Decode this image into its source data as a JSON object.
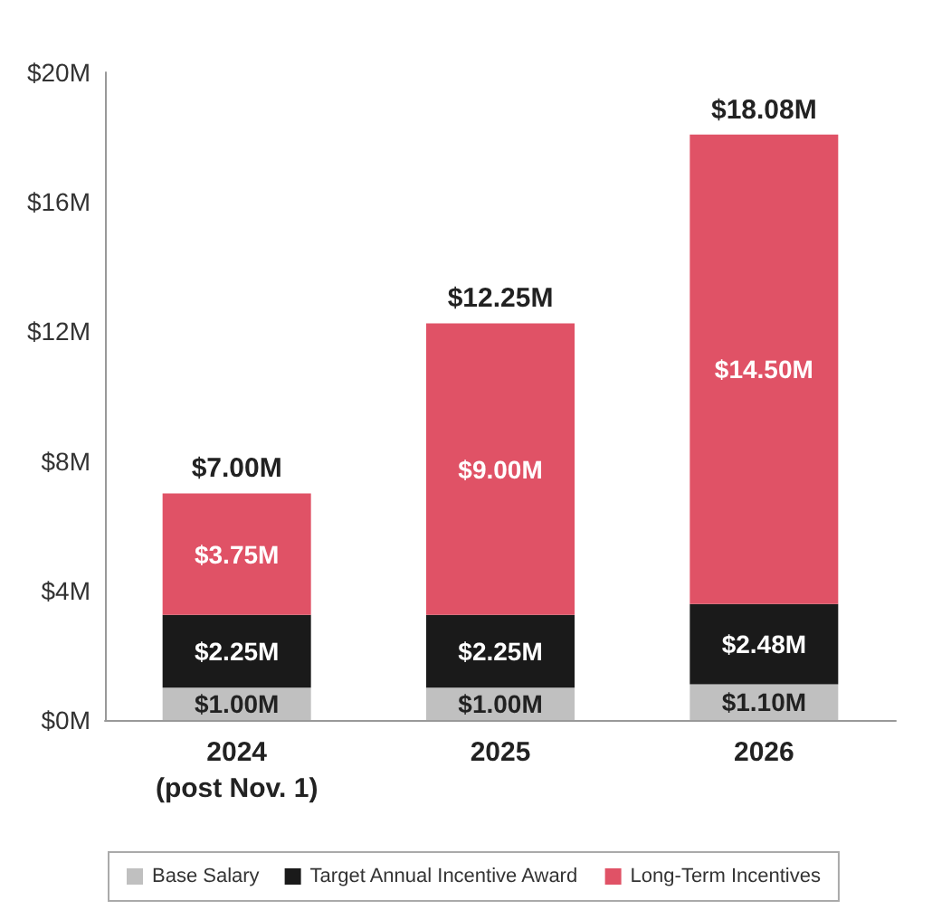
{
  "chart_data": {
    "type": "bar",
    "stacked": true,
    "categories": [
      "2024\n(post Nov. 1)",
      "2025",
      "2026"
    ],
    "series": [
      {
        "name": "Base Salary",
        "color": "#c0c0c0",
        "values": [
          1.0,
          1.0,
          1.1
        ],
        "value_labels": [
          "$1.00M",
          "$1.00M",
          "$1.10M"
        ]
      },
      {
        "name": "Target Annual Incentive Award",
        "color": "#1a1a1a",
        "values": [
          2.25,
          2.25,
          2.48
        ],
        "value_labels": [
          "$2.25M",
          "$2.25M",
          "$2.48M"
        ]
      },
      {
        "name": "Long-Term Incentives",
        "color": "#e05266",
        "values": [
          3.75,
          9.0,
          14.5
        ],
        "value_labels": [
          "$3.75M",
          "$9.00M",
          "$14.50M"
        ]
      }
    ],
    "totals": [
      "$7.00M",
      "$12.25M",
      "$18.08M"
    ],
    "ylim": [
      0,
      20
    ],
    "yticks": [
      {
        "value": 0,
        "label": "$0M"
      },
      {
        "value": 4,
        "label": "$4M"
      },
      {
        "value": 8,
        "label": "$8M"
      },
      {
        "value": 12,
        "label": "$12M"
      },
      {
        "value": 16,
        "label": "$16M"
      },
      {
        "value": 20,
        "label": "$20M"
      }
    ],
    "grid": false,
    "legend": "bottom"
  }
}
